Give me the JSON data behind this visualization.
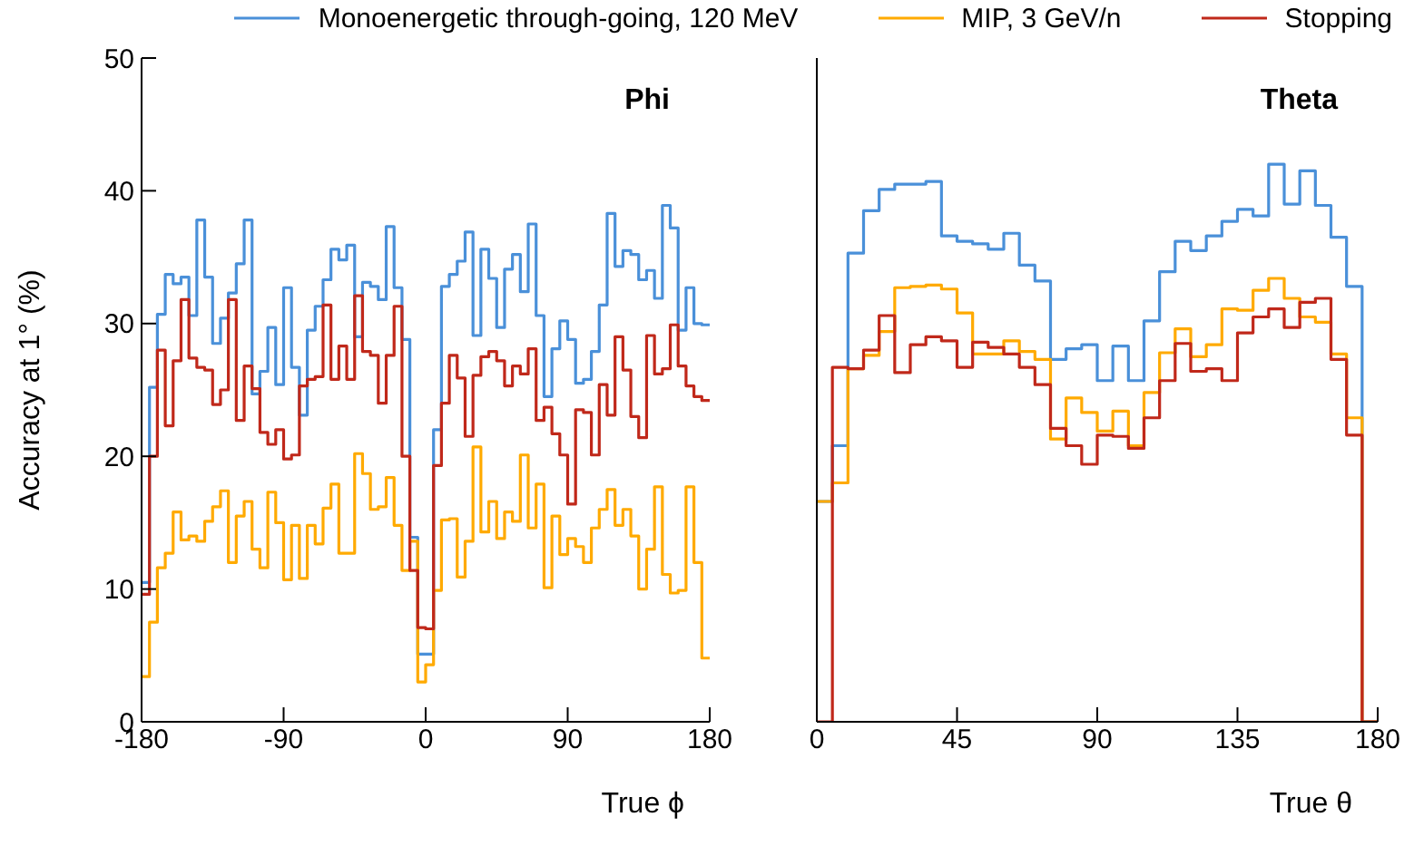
{
  "chart_data": [
    {
      "type": "histogram",
      "ylabel": "Accuracy at 1° (%)",
      "xlabel": "True ϕ",
      "annotations": [
        "Phi"
      ],
      "legend": "top",
      "bins": [
        -180,
        -175,
        -170,
        -165,
        -160,
        -155,
        -150,
        -145,
        -140,
        -135,
        -130,
        -125,
        -120,
        -115,
        -110,
        -105,
        -100,
        -95,
        -90,
        -85,
        -80,
        -75,
        -70,
        -65,
        -60,
        -55,
        -50,
        -45,
        -40,
        -35,
        -30,
        -25,
        -20,
        -15,
        -10,
        -5,
        0,
        5,
        10,
        15,
        20,
        25,
        30,
        35,
        40,
        45,
        50,
        55,
        60,
        65,
        70,
        75,
        80,
        85,
        90,
        95,
        100,
        105,
        110,
        115,
        120,
        125,
        130,
        135,
        140,
        145,
        150,
        155,
        160,
        165,
        170,
        175,
        180
      ],
      "xlim": [
        -180,
        180
      ],
      "xticks": [
        -180,
        -90,
        0,
        90,
        180
      ],
      "ylim": [
        0,
        50
      ],
      "yticks": [
        0,
        10,
        20,
        30,
        40,
        50
      ],
      "series": [
        {
          "name": "Monoenergetic through-going, 120 MeV",
          "color": "#4a90d9",
          "values": [
            10.5,
            25.2,
            30.7,
            33.7,
            33.0,
            33.5,
            30.6,
            37.8,
            33.5,
            28.5,
            30.4,
            32.3,
            34.5,
            37.8,
            24.7,
            26.4,
            29.7,
            25.4,
            32.7,
            26.7,
            23.1,
            29.5,
            31.3,
            33.3,
            35.6,
            34.8,
            35.9,
            29.0,
            33.1,
            32.8,
            31.8,
            37.3,
            32.7,
            28.8,
            13.9,
            5.1,
            5.1,
            22.0,
            32.8,
            33.7,
            34.7,
            36.9,
            29.1,
            35.6,
            33.4,
            29.7,
            34.1,
            35.2,
            32.4,
            37.5,
            30.6,
            24.5,
            28.1,
            30.2,
            28.8,
            25.5,
            25.8,
            27.9,
            31.4,
            38.3,
            34.3,
            35.5,
            35.2,
            33.3,
            34.0,
            31.9,
            38.9,
            37.2,
            29.5,
            32.7,
            30.0,
            29.9
          ]
        },
        {
          "name": "MIP, 3 GeV/n",
          "color": "#ffaa00",
          "values": [
            3.4,
            7.5,
            11.6,
            12.7,
            15.8,
            13.7,
            14.0,
            13.6,
            15.1,
            16.2,
            17.4,
            12.0,
            15.5,
            16.6,
            13.0,
            11.6,
            17.3,
            15.0,
            10.7,
            14.8,
            10.8,
            14.8,
            13.4,
            16.1,
            17.9,
            12.7,
            12.7,
            20.2,
            18.7,
            16.0,
            16.2,
            18.4,
            14.8,
            11.4,
            13.6,
            3.0,
            4.3,
            9.9,
            15.2,
            15.3,
            10.9,
            13.6,
            20.7,
            14.3,
            16.6,
            13.8,
            15.8,
            15.1,
            20.1,
            14.6,
            17.9,
            10.1,
            15.5,
            12.6,
            13.8,
            13.2,
            12.0,
            14.6,
            16.0,
            17.5,
            14.8,
            16.0,
            14.0,
            10.0,
            13.0,
            17.7,
            11.1,
            9.7,
            9.9,
            17.7,
            12.0,
            4.8
          ]
        },
        {
          "name": "Stopping",
          "color": "#c0281a",
          "values": [
            9.6,
            20.0,
            28.0,
            22.3,
            27.2,
            31.8,
            27.4,
            26.7,
            26.5,
            23.9,
            25.0,
            31.8,
            22.7,
            26.8,
            25.1,
            21.8,
            20.9,
            22.0,
            19.8,
            20.1,
            25.3,
            25.8,
            26.0,
            31.4,
            25.8,
            28.3,
            25.8,
            32.1,
            27.9,
            27.6,
            24.0,
            27.6,
            31.3,
            20.0,
            11.4,
            7.1,
            7.0,
            19.3,
            24.0,
            27.6,
            25.9,
            21.5,
            26.1,
            27.5,
            27.9,
            27.2,
            25.3,
            26.8,
            26.2,
            28.1,
            22.7,
            23.7,
            21.7,
            20.1,
            16.4,
            23.5,
            23.3,
            20.1,
            25.4,
            23.1,
            29.0,
            26.5,
            23.0,
            21.4,
            29.1,
            26.2,
            26.6,
            29.9,
            26.8,
            25.3,
            24.5,
            24.2
          ]
        }
      ]
    },
    {
      "type": "histogram",
      "xlabel": "True θ",
      "annotations": [
        "Theta"
      ],
      "legend": "top",
      "tick_labels": "x",
      "bins": [
        0,
        5,
        10,
        15,
        20,
        25,
        30,
        35,
        40,
        45,
        50,
        55,
        60,
        65,
        70,
        75,
        80,
        85,
        90,
        95,
        100,
        105,
        110,
        115,
        120,
        125,
        130,
        135,
        140,
        145,
        150,
        155,
        160,
        165,
        170,
        175,
        180
      ],
      "xlim": [
        0,
        180
      ],
      "xticks": [
        0,
        45,
        90,
        135,
        180
      ],
      "ylim": [
        0,
        50
      ],
      "yticks": [
        0,
        10,
        20,
        30,
        40,
        50
      ],
      "series": [
        {
          "name": "Monoenergetic through-going, 120 MeV",
          "color": "#4a90d9",
          "values": [
            16.6,
            20.8,
            35.3,
            38.5,
            40.1,
            40.5,
            40.5,
            40.7,
            36.6,
            36.2,
            36.0,
            35.6,
            36.8,
            34.4,
            33.2,
            27.3,
            28.1,
            28.4,
            25.7,
            28.3,
            25.7,
            30.2,
            33.9,
            36.2,
            35.5,
            36.6,
            37.7,
            38.6,
            38.1,
            42.0,
            39.0,
            41.5,
            38.9,
            36.5,
            32.8,
            0
          ]
        },
        {
          "name": "MIP, 3 GeV/n",
          "color": "#ffaa00",
          "values": [
            16.6,
            18.0,
            26.6,
            27.6,
            29.4,
            32.7,
            32.8,
            32.9,
            32.6,
            30.8,
            27.7,
            27.7,
            28.7,
            27.9,
            27.3,
            21.3,
            24.4,
            23.3,
            21.9,
            23.4,
            20.8,
            24.8,
            27.8,
            29.6,
            27.5,
            28.4,
            31.1,
            31.0,
            32.5,
            33.4,
            31.9,
            30.5,
            30.1,
            27.7,
            22.9,
            0
          ]
        },
        {
          "name": "Stopping",
          "color": "#c0281a",
          "values": [
            0,
            26.7,
            26.6,
            28.0,
            30.6,
            26.3,
            28.4,
            29.0,
            28.7,
            26.7,
            28.6,
            28.2,
            27.7,
            26.7,
            25.4,
            22.1,
            20.8,
            19.4,
            21.6,
            21.5,
            20.6,
            22.9,
            25.7,
            28.5,
            26.4,
            26.6,
            25.7,
            29.3,
            30.5,
            31.1,
            29.7,
            31.6,
            31.9,
            27.3,
            21.6,
            0
          ]
        }
      ]
    }
  ]
}
